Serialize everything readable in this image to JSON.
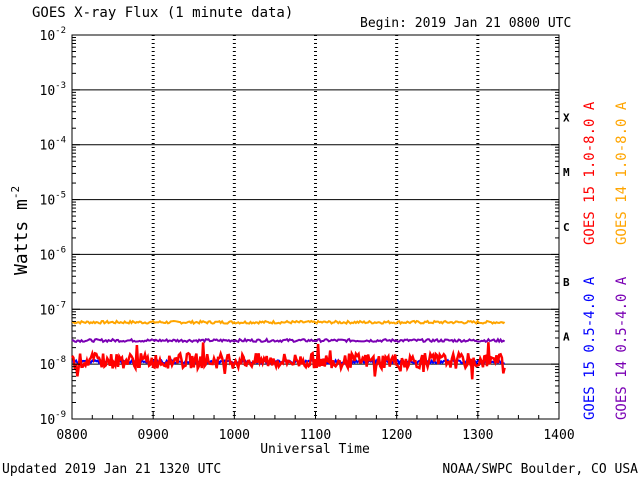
{
  "chart_data": {
    "type": "line",
    "title": "GOES X-ray Flux (1 minute data)",
    "begin": "Begin: 2019 Jan 21 0800 UTC",
    "updated": "Updated 2019 Jan 21 1320 UTC",
    "credit": "NOAA/SWPC Boulder, CO USA",
    "xlabel": "Universal Time",
    "ylabel_main": "Watts m",
    "ylabel_exp": "-2",
    "x_ticks": [
      "0800",
      "0900",
      "1000",
      "1100",
      "1200",
      "1300",
      "1400"
    ],
    "xlim_hours": [
      8,
      14
    ],
    "y_scale": "log",
    "ylim": [
      1e-09,
      0.01
    ],
    "y_ticks": [
      {
        "value": 0.01,
        "base": "10",
        "exp": "-2"
      },
      {
        "value": 0.001,
        "base": "10",
        "exp": "-3"
      },
      {
        "value": 0.0001,
        "base": "10",
        "exp": "-4"
      },
      {
        "value": 1e-05,
        "base": "10",
        "exp": "-5"
      },
      {
        "value": 1e-06,
        "base": "10",
        "exp": "-6"
      },
      {
        "value": 1e-07,
        "base": "10",
        "exp": "-7"
      },
      {
        "value": 1e-08,
        "base": "10",
        "exp": "-8"
      },
      {
        "value": 1e-09,
        "base": "10",
        "exp": "-9"
      }
    ],
    "flare_classes": [
      {
        "label": "X",
        "low": 0.0001,
        "high": 0.001
      },
      {
        "label": "M",
        "low": 1e-05,
        "high": 0.0001
      },
      {
        "label": "C",
        "low": 1e-06,
        "high": 1e-05
      },
      {
        "label": "B",
        "low": 1e-07,
        "high": 1e-06
      },
      {
        "label": "A",
        "low": 1e-08,
        "high": 1e-07
      }
    ],
    "class_lines": [
      0.001,
      0.0001,
      1e-05,
      1e-06,
      1e-07,
      1e-08
    ],
    "series": [
      {
        "name": "GOES 15 1.0-8.0 A",
        "color": "#ff0000",
        "level": 1.15e-08,
        "noise": 0.28,
        "spikes": true
      },
      {
        "name": "GOES 14 1.0-8.0 A",
        "color": "#ffa500",
        "level": 5.8e-08,
        "noise": 0.05,
        "spikes": false
      },
      {
        "name": "GOES 15 0.5-4.0 A",
        "color": "#0000ff",
        "level": 1.1e-08,
        "noise": 0.06,
        "spikes": false
      },
      {
        "name": "GOES 14 0.5-4.0 A",
        "color": "#7a00b4",
        "level": 2.7e-08,
        "noise": 0.05,
        "spikes": false
      }
    ],
    "data_end_hours": 13.33,
    "grid": "dashed vertical at each hour"
  }
}
